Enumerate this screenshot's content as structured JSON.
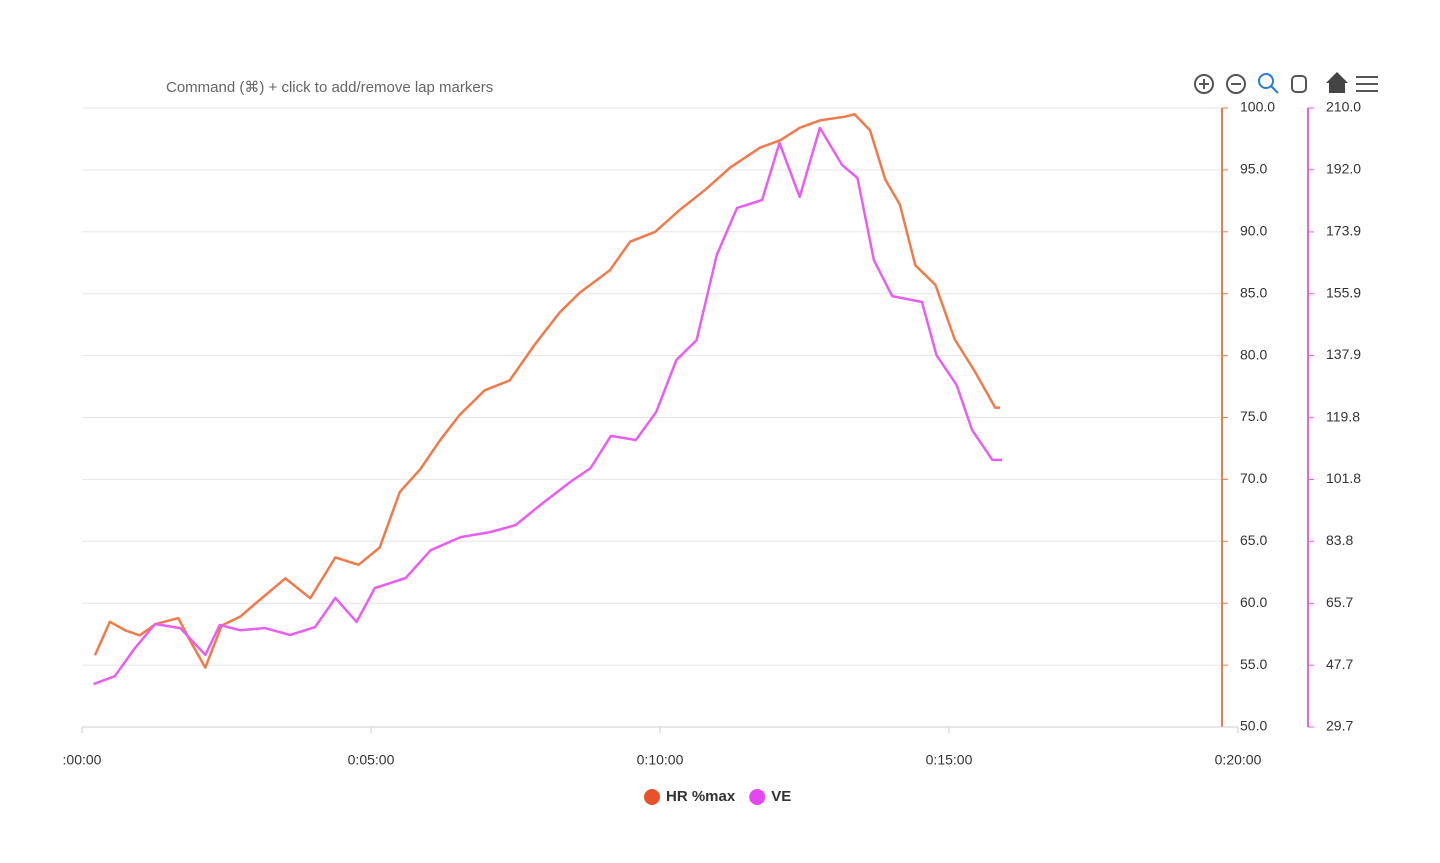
{
  "chart_data": {
    "type": "line",
    "annotation": "Command (⌘) + click to add/remove lap markers",
    "x_series": [
      13.5,
      29,
      45,
      60,
      76,
      100,
      112,
      128,
      145,
      164,
      185,
      211,
      237,
      263,
      287,
      309,
      330,
      351,
      372,
      392,
      418,
      444,
      470,
      496,
      517,
      548,
      569,
      595,
      621,
      647,
      673,
      704,
      725,
      745,
      766,
      792,
      802,
      818,
      834,
      849,
      865,
      886,
      906,
      927,
      948,
      953
    ],
    "x2_series": [
      12,
      34,
      55,
      76,
      102,
      128,
      143,
      164,
      190,
      216,
      242,
      263,
      285,
      304,
      336,
      362,
      393,
      424,
      450,
      476,
      507,
      528,
      549,
      575,
      596,
      617,
      638,
      659,
      680,
      706,
      724,
      745,
      766,
      789,
      805,
      822,
      841,
      872,
      887,
      908,
      924,
      945,
      955
    ],
    "series": [
      {
        "name": "HR %max",
        "color": "#f07a4a",
        "legend_color": "#e8522a",
        "values": [
          55.8,
          58.5,
          57.8,
          57.4,
          58.3,
          58.8,
          57.0,
          54.8,
          58.2,
          58.9,
          60.3,
          62.0,
          60.4,
          63.7,
          63.1,
          64.5,
          69.0,
          70.8,
          73.2,
          75.2,
          77.2,
          78.0,
          80.9,
          83.5,
          85.1,
          86.9,
          89.2,
          90.0,
          91.8,
          93.4,
          95.2,
          96.8,
          97.4,
          98.4,
          99.0,
          99.3,
          99.5,
          98.2,
          94.2,
          92.2,
          87.3,
          85.7,
          81.3,
          78.7,
          75.8,
          75.8
        ]
      },
      {
        "name": "VE",
        "color": "#e85ef0",
        "legend_color": "#e447f0",
        "axis": "y2",
        "values": [
          42.2,
          44.5,
          52.7,
          59.7,
          58.5,
          50.7,
          59.4,
          57.9,
          58.5,
          56.5,
          58.8,
          67.3,
          60.3,
          70.2,
          73.1,
          81.2,
          85.0,
          86.5,
          88.5,
          94.4,
          101.1,
          105.1,
          114.5,
          113.3,
          121.4,
          136.6,
          142.4,
          167.2,
          180.9,
          183.2,
          199.8,
          184.1,
          204.2,
          193.4,
          189.6,
          165.7,
          155.2,
          153.5,
          138.0,
          129.3,
          116.2,
          107.5,
          107.5
        ]
      }
    ],
    "xlim": [
      0,
      1200
    ],
    "xticks": [
      {
        "value": 0,
        "label": ":00:00"
      },
      {
        "value": 300,
        "label": "0:05:00"
      },
      {
        "value": 600,
        "label": "0:10:00"
      },
      {
        "value": 900,
        "label": "0:15:00"
      },
      {
        "value": 1200,
        "label": "0:20:00"
      }
    ],
    "ylim": [
      50,
      100
    ],
    "yticks": [
      {
        "value": 50,
        "label": "50.0"
      },
      {
        "value": 55,
        "label": "55.0"
      },
      {
        "value": 60,
        "label": "60.0"
      },
      {
        "value": 65,
        "label": "65.0"
      },
      {
        "value": 70,
        "label": "70.0"
      },
      {
        "value": 75,
        "label": "75.0"
      },
      {
        "value": 80,
        "label": "80.0"
      },
      {
        "value": 85,
        "label": "85.0"
      },
      {
        "value": 90,
        "label": "90.0"
      },
      {
        "value": 95,
        "label": "95.0"
      },
      {
        "value": 100,
        "label": "100.0"
      }
    ],
    "y2lim": [
      29.7,
      210
    ],
    "y2ticks": [
      29.7,
      47.7,
      65.7,
      83.8,
      101.8,
      119.8,
      137.9,
      155.9,
      173.9,
      {
        "value": 192,
        "label": "192.0"
      },
      {
        "value": 210,
        "label": "210.0"
      }
    ],
    "grid": true,
    "legend": "bottom"
  }
}
